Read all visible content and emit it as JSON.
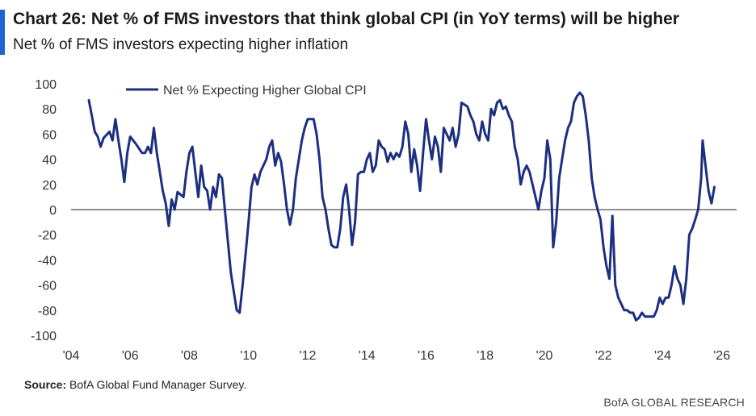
{
  "header": {
    "title": "Chart 26: Net % of FMS investors that think global CPI (in YoY terms) will be higher",
    "subtitle": "Net % of FMS investors expecting higher inflation"
  },
  "footer": {
    "source_label": "Source:",
    "source_text": "BofA Global Fund Manager Survey.",
    "brand": "BofA GLOBAL RESEARCH"
  },
  "colors": {
    "accent": "#1e63d6",
    "series": "#1c2f80",
    "zero_line": "#222222"
  },
  "chart_data": {
    "type": "line",
    "title": "Chart 26: Net % of FMS investors that think global CPI (in YoY terms) will be higher",
    "subtitle": "Net % of FMS investors expecting higher inflation",
    "xlabel": "",
    "ylabel": "",
    "xlim": [
      2004,
      2026.5
    ],
    "ylim": [
      -100,
      100
    ],
    "x_ticks": [
      "'04",
      "'06",
      "'08",
      "'10",
      "'12",
      "'14",
      "'16",
      "'18",
      "'20",
      "'22",
      "'24",
      "'26"
    ],
    "y_ticks": [
      100,
      80,
      60,
      40,
      20,
      0,
      -20,
      -40,
      -60,
      -80,
      -100
    ],
    "grid": false,
    "zero_line": true,
    "legend_position": "top-left",
    "series": [
      {
        "name": "Net % Expecting Higher Global CPI",
        "color": "#1c2f80",
        "points": [
          [
            2004.6,
            87
          ],
          [
            2004.7,
            75
          ],
          [
            2004.8,
            62
          ],
          [
            2004.9,
            58
          ],
          [
            2005.0,
            50
          ],
          [
            2005.1,
            57
          ],
          [
            2005.3,
            62
          ],
          [
            2005.4,
            55
          ],
          [
            2005.5,
            72
          ],
          [
            2005.6,
            55
          ],
          [
            2005.7,
            40
          ],
          [
            2005.8,
            22
          ],
          [
            2005.9,
            45
          ],
          [
            2006.0,
            58
          ],
          [
            2006.2,
            52
          ],
          [
            2006.4,
            45
          ],
          [
            2006.5,
            45
          ],
          [
            2006.6,
            50
          ],
          [
            2006.7,
            45
          ],
          [
            2006.8,
            65
          ],
          [
            2006.9,
            45
          ],
          [
            2007.0,
            30
          ],
          [
            2007.1,
            15
          ],
          [
            2007.2,
            5
          ],
          [
            2007.3,
            -13
          ],
          [
            2007.4,
            8
          ],
          [
            2007.5,
            0
          ],
          [
            2007.6,
            14
          ],
          [
            2007.8,
            10
          ],
          [
            2007.9,
            30
          ],
          [
            2008.0,
            45
          ],
          [
            2008.1,
            50
          ],
          [
            2008.2,
            30
          ],
          [
            2008.3,
            10
          ],
          [
            2008.4,
            35
          ],
          [
            2008.5,
            18
          ],
          [
            2008.6,
            15
          ],
          [
            2008.7,
            0
          ],
          [
            2008.8,
            18
          ],
          [
            2008.9,
            10
          ],
          [
            2009.0,
            28
          ],
          [
            2009.1,
            25
          ],
          [
            2009.2,
            0
          ],
          [
            2009.3,
            -25
          ],
          [
            2009.4,
            -50
          ],
          [
            2009.5,
            -65
          ],
          [
            2009.6,
            -80
          ],
          [
            2009.7,
            -82
          ],
          [
            2009.8,
            -60
          ],
          [
            2009.9,
            -35
          ],
          [
            2010.0,
            -10
          ],
          [
            2010.1,
            18
          ],
          [
            2010.2,
            28
          ],
          [
            2010.3,
            20
          ],
          [
            2010.4,
            30
          ],
          [
            2010.6,
            40
          ],
          [
            2010.7,
            50
          ],
          [
            2010.8,
            55
          ],
          [
            2010.9,
            35
          ],
          [
            2011.0,
            45
          ],
          [
            2011.1,
            38
          ],
          [
            2011.2,
            20
          ],
          [
            2011.3,
            0
          ],
          [
            2011.4,
            -12
          ],
          [
            2011.5,
            0
          ],
          [
            2011.6,
            25
          ],
          [
            2011.8,
            55
          ],
          [
            2011.9,
            65
          ],
          [
            2012.0,
            72
          ],
          [
            2012.2,
            72
          ],
          [
            2012.3,
            60
          ],
          [
            2012.4,
            40
          ],
          [
            2012.5,
            10
          ],
          [
            2012.6,
            0
          ],
          [
            2012.7,
            -15
          ],
          [
            2012.8,
            -28
          ],
          [
            2012.9,
            -30
          ],
          [
            2013.0,
            -30
          ],
          [
            2013.1,
            -15
          ],
          [
            2013.2,
            10
          ],
          [
            2013.3,
            20
          ],
          [
            2013.4,
            0
          ],
          [
            2013.5,
            -28
          ],
          [
            2013.6,
            -10
          ],
          [
            2013.7,
            28
          ],
          [
            2013.8,
            30
          ],
          [
            2013.9,
            30
          ],
          [
            2014.0,
            40
          ],
          [
            2014.1,
            45
          ],
          [
            2014.2,
            30
          ],
          [
            2014.3,
            35
          ],
          [
            2014.4,
            55
          ],
          [
            2014.5,
            50
          ],
          [
            2014.6,
            48
          ],
          [
            2014.7,
            38
          ],
          [
            2014.8,
            45
          ],
          [
            2014.9,
            40
          ],
          [
            2015.0,
            45
          ],
          [
            2015.1,
            42
          ],
          [
            2015.2,
            50
          ],
          [
            2015.3,
            70
          ],
          [
            2015.4,
            60
          ],
          [
            2015.5,
            30
          ],
          [
            2015.6,
            48
          ],
          [
            2015.7,
            35
          ],
          [
            2015.8,
            15
          ],
          [
            2015.9,
            45
          ],
          [
            2016.0,
            72
          ],
          [
            2016.1,
            55
          ],
          [
            2016.2,
            40
          ],
          [
            2016.3,
            58
          ],
          [
            2016.4,
            50
          ],
          [
            2016.5,
            30
          ],
          [
            2016.6,
            65
          ],
          [
            2016.7,
            60
          ],
          [
            2016.8,
            55
          ],
          [
            2016.9,
            65
          ],
          [
            2017.0,
            50
          ],
          [
            2017.1,
            60
          ],
          [
            2017.2,
            85
          ],
          [
            2017.4,
            82
          ],
          [
            2017.5,
            75
          ],
          [
            2017.6,
            70
          ],
          [
            2017.7,
            60
          ],
          [
            2017.8,
            55
          ],
          [
            2017.9,
            70
          ],
          [
            2018.0,
            60
          ],
          [
            2018.1,
            55
          ],
          [
            2018.2,
            80
          ],
          [
            2018.3,
            75
          ],
          [
            2018.4,
            85
          ],
          [
            2018.5,
            87
          ],
          [
            2018.6,
            80
          ],
          [
            2018.7,
            82
          ],
          [
            2018.8,
            75
          ],
          [
            2018.9,
            70
          ],
          [
            2019.0,
            50
          ],
          [
            2019.1,
            40
          ],
          [
            2019.2,
            20
          ],
          [
            2019.3,
            30
          ],
          [
            2019.4,
            35
          ],
          [
            2019.5,
            30
          ],
          [
            2019.6,
            20
          ],
          [
            2019.7,
            10
          ],
          [
            2019.8,
            0
          ],
          [
            2019.9,
            15
          ],
          [
            2020.0,
            25
          ],
          [
            2020.1,
            55
          ],
          [
            2020.2,
            40
          ],
          [
            2020.3,
            -30
          ],
          [
            2020.4,
            -10
          ],
          [
            2020.5,
            25
          ],
          [
            2020.6,
            40
          ],
          [
            2020.7,
            55
          ],
          [
            2020.8,
            65
          ],
          [
            2020.9,
            70
          ],
          [
            2021.0,
            85
          ],
          [
            2021.1,
            90
          ],
          [
            2021.2,
            93
          ],
          [
            2021.3,
            90
          ],
          [
            2021.4,
            75
          ],
          [
            2021.5,
            55
          ],
          [
            2021.6,
            25
          ],
          [
            2021.7,
            10
          ],
          [
            2021.8,
            0
          ],
          [
            2021.9,
            -8
          ],
          [
            2022.0,
            -30
          ],
          [
            2022.1,
            -45
          ],
          [
            2022.2,
            -55
          ],
          [
            2022.3,
            -5
          ],
          [
            2022.4,
            -60
          ],
          [
            2022.5,
            -70
          ],
          [
            2022.6,
            -75
          ],
          [
            2022.7,
            -80
          ],
          [
            2022.8,
            -80
          ],
          [
            2022.9,
            -82
          ],
          [
            2023.0,
            -82
          ],
          [
            2023.1,
            -88
          ],
          [
            2023.2,
            -86
          ],
          [
            2023.3,
            -82
          ],
          [
            2023.4,
            -85
          ],
          [
            2023.5,
            -85
          ],
          [
            2023.6,
            -85
          ],
          [
            2023.7,
            -85
          ],
          [
            2023.8,
            -80
          ],
          [
            2023.9,
            -70
          ],
          [
            2024.0,
            -75
          ],
          [
            2024.1,
            -70
          ],
          [
            2024.2,
            -70
          ],
          [
            2024.3,
            -60
          ],
          [
            2024.4,
            -45
          ],
          [
            2024.5,
            -55
          ],
          [
            2024.6,
            -60
          ],
          [
            2024.7,
            -75
          ],
          [
            2024.8,
            -55
          ],
          [
            2024.9,
            -20
          ],
          [
            2025.0,
            -15
          ],
          [
            2025.1,
            -8
          ],
          [
            2025.2,
            0
          ],
          [
            2025.3,
            25
          ],
          [
            2025.35,
            55
          ],
          [
            2025.45,
            35
          ],
          [
            2025.55,
            15
          ],
          [
            2025.65,
            5
          ],
          [
            2025.75,
            18
          ]
        ]
      }
    ]
  }
}
